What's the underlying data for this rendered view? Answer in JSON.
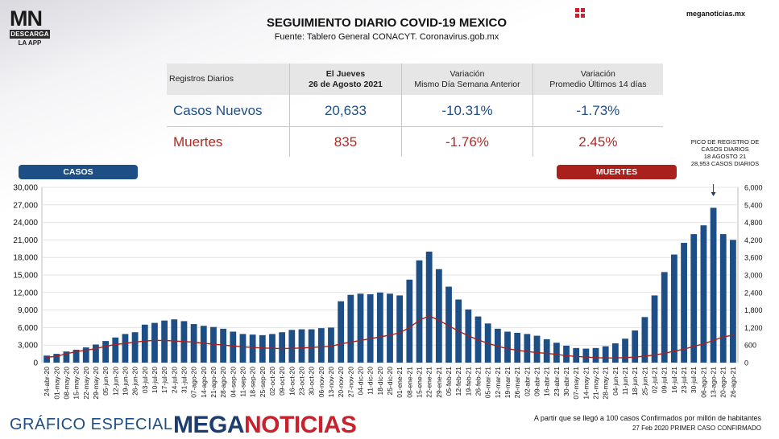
{
  "brand": {
    "logo_mn": "MN",
    "logo_bar": "DESCARGA",
    "logo_app": "LA APP",
    "site": "meganoticias.mx",
    "footer_left": "GRÁFICO ESPECIAL",
    "footer_brand_a": "MEGA",
    "footer_brand_b": "NOTICIAS",
    "colors": {
      "casos": "#1d4f86",
      "muertes": "#a9201c",
      "accent": "#c9222c"
    }
  },
  "header": {
    "title": "SEGUIMIENTO DIARIO COVID-19 MEXICO",
    "source": "Fuente: Tablero General CONACYT. Coronavirus.gob.mx"
  },
  "stats_table": {
    "row_header": "Registros Diarios",
    "col1_line1": "El Jueves",
    "col1_line2": "26 de Agosto 2021",
    "col2_line1": "Variación",
    "col2_line2": "Mismo Día Semana Anterior",
    "col3_line1": "Variación",
    "col3_line2": "Promedio Últimos 14 días",
    "casos": {
      "label": "Casos Nuevos",
      "value": "20,633",
      "var_week": "-10.31%",
      "var_14d": "-1.73%"
    },
    "muertes": {
      "label": "Muertes",
      "value": "835",
      "var_week": "-1.76%",
      "var_14d": "2.45%"
    }
  },
  "legend": {
    "casos": "CASOS",
    "muertes": "MUERTES"
  },
  "annotation": {
    "line1": "PICO DE REGISTRO DE",
    "line2": "CASOS DIARIOS",
    "line3": "18 AGOSTO 21",
    "line4": "28,953 CASOS DIARIOS"
  },
  "footnotes": {
    "line1": "A partir que se llegó a 100 casos Confirmados por millón de habitantes",
    "line2": "27 Feb 2020 PRIMER CASO CONFIRMADO"
  },
  "chart_data": {
    "type": "bar",
    "title": "",
    "xlabel": "",
    "ylabel_left": "",
    "ylabel_right": "",
    "ylim_left": [
      0,
      30000
    ],
    "ylim_right": [
      0,
      6000
    ],
    "yticks_left": [
      "0",
      "3,000",
      "6,000",
      "9,000",
      "12,000",
      "15,000",
      "18,000",
      "21,000",
      "24,000",
      "27,000",
      "30,000"
    ],
    "yticks_right": [
      "0",
      "600",
      "1,200",
      "1,800",
      "2,400",
      "3,000",
      "3,600",
      "4,200",
      "4,800",
      "5,400",
      "6,000"
    ],
    "categories": [
      "24-abr-20",
      "01-may-20",
      "08-may-20",
      "15-may-20",
      "22-may-20",
      "29-may-20",
      "05-jun-20",
      "12-jun-20",
      "19-jun-20",
      "26-jun-20",
      "03-jul-20",
      "10-jul-20",
      "17-jul-20",
      "24-jul-20",
      "31-jul-20",
      "07-ago-20",
      "14-ago-20",
      "21-ago-20",
      "28-ago-20",
      "04-sep-20",
      "11-sep-20",
      "18-sep-20",
      "25-sep-20",
      "02-oct-20",
      "09-oct-20",
      "16-oct-20",
      "23-oct-20",
      "30-oct-20",
      "06-nov-20",
      "13-nov-20",
      "20-nov-20",
      "27-nov-20",
      "04-dic-20",
      "11-dic-20",
      "18-dic-20",
      "25-dic-20",
      "01-ene-21",
      "08-ene-21",
      "15-ene-21",
      "22-ene-21",
      "29-ene-21",
      "05-feb-21",
      "12-feb-21",
      "19-feb-21",
      "26-feb-21",
      "05-mar-21",
      "12-mar-21",
      "19-mar-21",
      "26-mar-21",
      "02-abr-21",
      "09-abr-21",
      "16-abr-21",
      "23-abr-21",
      "30-abr-21",
      "07-may-21",
      "14-may-21",
      "21-may-21",
      "28-may-21",
      "04-jun-21",
      "11-jun-21",
      "18-jun-21",
      "25-jun-21",
      "02-jul-21",
      "09-jul-21",
      "16-jul-21",
      "23-jul-21",
      "30-jul-21",
      "06-ago-21",
      "13-ago-21",
      "20-ago-21",
      "26-ago-21"
    ],
    "series": [
      {
        "name": "CASOS",
        "axis": "left",
        "color": "#1d4f86",
        "values": [
          1200,
          1500,
          1900,
          2200,
          2600,
          3100,
          3700,
          4300,
          4900,
          5200,
          6500,
          6800,
          7200,
          7400,
          7100,
          6600,
          6300,
          6100,
          5800,
          5300,
          4900,
          4800,
          4700,
          4900,
          5200,
          5600,
          5700,
          5700,
          5900,
          6000,
          10500,
          11600,
          11800,
          11700,
          12000,
          11800,
          11500,
          14200,
          17500,
          19000,
          16000,
          13000,
          10800,
          9100,
          7900,
          6700,
          5800,
          5300,
          5100,
          4900,
          4600,
          4000,
          3400,
          2900,
          2500,
          2400,
          2500,
          2800,
          3300,
          4100,
          5500,
          7800,
          11500,
          15500,
          18500,
          20500,
          22000,
          23500,
          26500,
          22000,
          21000
        ]
      },
      {
        "name": "MUERTES",
        "axis": "right",
        "color": "#a9201c",
        "values": [
          180,
          220,
          300,
          380,
          420,
          480,
          560,
          620,
          660,
          700,
          740,
          760,
          760,
          740,
          720,
          700,
          660,
          630,
          600,
          570,
          540,
          520,
          500,
          490,
          480,
          490,
          500,
          520,
          540,
          560,
          640,
          700,
          760,
          820,
          880,
          940,
          1020,
          1200,
          1450,
          1600,
          1450,
          1260,
          1080,
          920,
          780,
          660,
          560,
          480,
          420,
          380,
          340,
          320,
          280,
          240,
          210,
          190,
          170,
          160,
          160,
          170,
          190,
          220,
          260,
          320,
          390,
          460,
          560,
          640,
          760,
          880,
          940
        ]
      }
    ]
  }
}
